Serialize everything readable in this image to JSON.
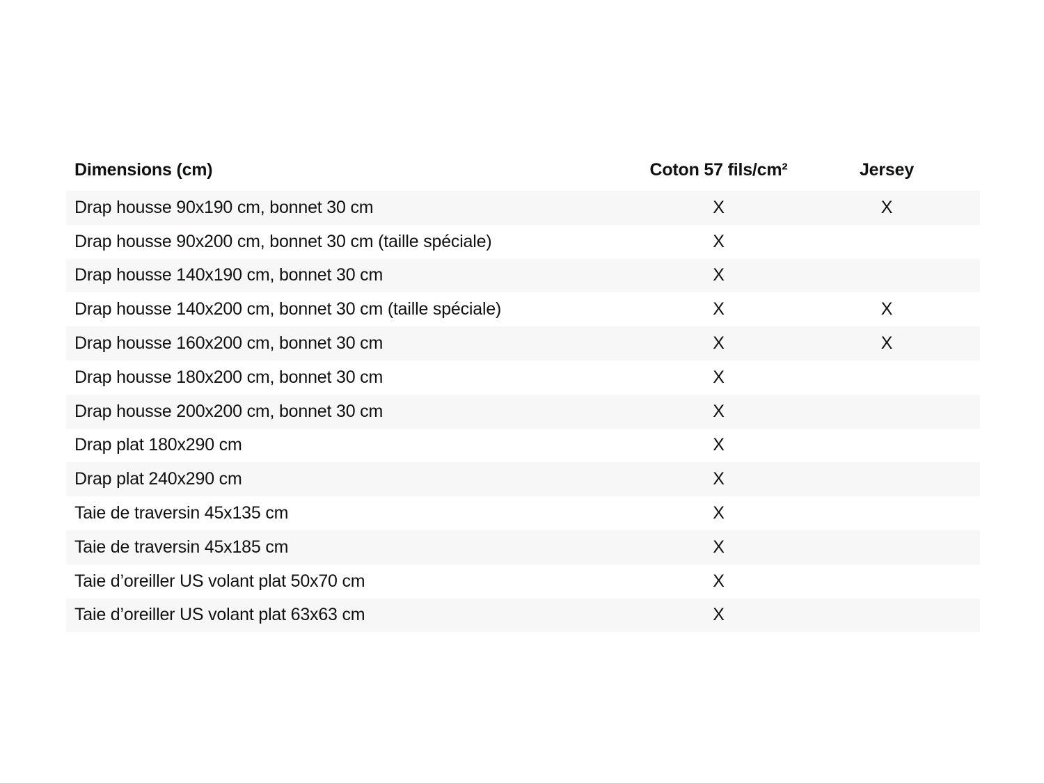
{
  "colors": {
    "page_background": "#ffffff",
    "stripe_row_background": "#f7f7f7",
    "text": "#0f1111"
  },
  "table": {
    "header": {
      "dimensions_label": "Dimensions (cm)",
      "coton_label": "Coton 57 fils/cm²",
      "jersey_label": "Jersey"
    },
    "rows": [
      {
        "label": "Drap housse 90x190 cm, bonnet 30 cm",
        "coton": "X",
        "jersey": "X"
      },
      {
        "label": "Drap housse 90x200 cm, bonnet 30 cm (taille spéciale)",
        "coton": "X",
        "jersey": ""
      },
      {
        "label": "Drap housse 140x190 cm, bonnet 30 cm",
        "coton": "X",
        "jersey": ""
      },
      {
        "label": "Drap housse 140x200 cm, bonnet 30 cm (taille spéciale)",
        "coton": "X",
        "jersey": "X"
      },
      {
        "label": "Drap housse 160x200 cm, bonnet 30 cm",
        "coton": "X",
        "jersey": "X"
      },
      {
        "label": "Drap housse 180x200 cm, bonnet 30 cm",
        "coton": "X",
        "jersey": ""
      },
      {
        "label": "Drap housse 200x200 cm, bonnet 30 cm",
        "coton": "X",
        "jersey": ""
      },
      {
        "label": "Drap plat 180x290 cm",
        "coton": "X",
        "jersey": ""
      },
      {
        "label": "Drap plat 240x290 cm",
        "coton": "X",
        "jersey": ""
      },
      {
        "label": "Taie de traversin 45x135 cm",
        "coton": "X",
        "jersey": ""
      },
      {
        "label": "Taie de traversin 45x185 cm",
        "coton": "X",
        "jersey": ""
      },
      {
        "label": "Taie d’oreiller US volant plat 50x70 cm",
        "coton": "X",
        "jersey": ""
      },
      {
        "label": "Taie d’oreiller US volant plat 63x63 cm",
        "coton": "X",
        "jersey": ""
      }
    ]
  }
}
